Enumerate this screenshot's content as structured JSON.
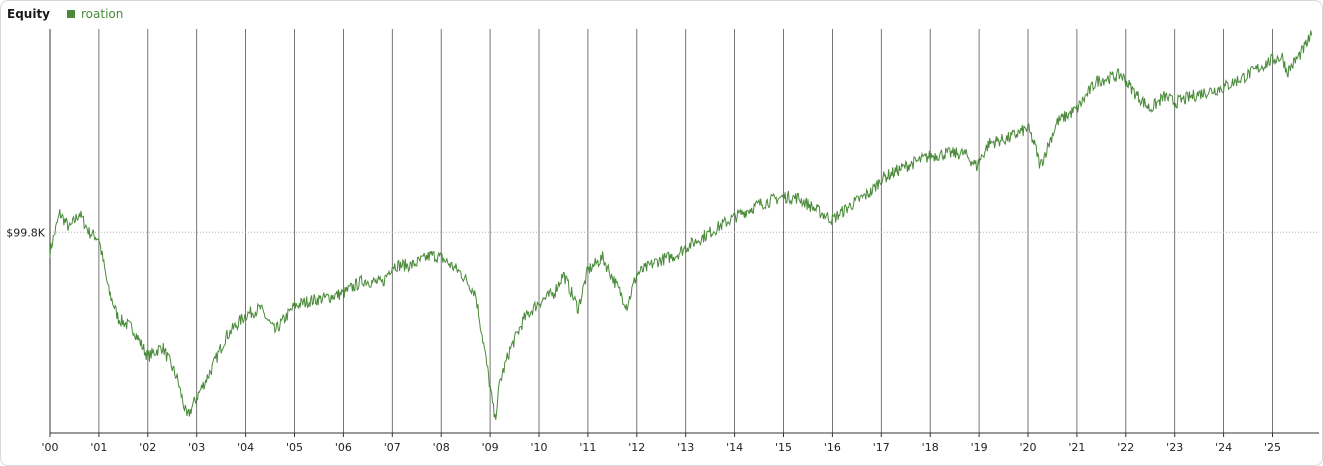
{
  "chart_data": {
    "type": "line",
    "title": "Equity",
    "legend_placement": "top-left",
    "series": [
      {
        "name": "roation",
        "color": "#4a8a3a",
        "x": [
          2000.0,
          2000.2,
          2000.4,
          2000.6,
          2000.8,
          2001.0,
          2001.2,
          2001.4,
          2001.7,
          2002.0,
          2002.3,
          2002.6,
          2002.8,
          2003.0,
          2003.3,
          2003.6,
          2004.0,
          2004.3,
          2004.6,
          2005.0,
          2005.3,
          2005.6,
          2006.0,
          2006.4,
          2006.8,
          2007.0,
          2007.4,
          2007.8,
          2008.0,
          2008.4,
          2008.7,
          2008.9,
          2009.1,
          2009.2,
          2009.4,
          2009.7,
          2010.0,
          2010.3,
          2010.5,
          2010.8,
          2011.0,
          2011.3,
          2011.6,
          2011.8,
          2012.0,
          2012.4,
          2012.8,
          2013.0,
          2013.5,
          2014.0,
          2014.5,
          2015.0,
          2015.3,
          2015.7,
          2016.0,
          2016.4,
          2016.8,
          2017.0,
          2017.5,
          2018.0,
          2018.3,
          2018.7,
          2018.95,
          2019.2,
          2019.6,
          2020.0,
          2020.15,
          2020.25,
          2020.6,
          2021.0,
          2021.4,
          2021.9,
          2022.2,
          2022.5,
          2022.8,
          2023.0,
          2023.5,
          2023.8,
          2024.0,
          2024.5,
          2025.0,
          2025.2,
          2025.3,
          2025.6,
          2025.8
        ],
        "y": [
          98.3,
          101.3,
          100.1,
          101.3,
          99.8,
          99.3,
          95.2,
          93.0,
          92.2,
          90.0,
          90.8,
          88.3,
          85.2,
          86.8,
          89.0,
          91.6,
          93.3,
          93.8,
          92.0,
          94.0,
          94.4,
          94.6,
          95.0,
          96.0,
          95.8,
          97.2,
          97.2,
          98.0,
          97.8,
          96.6,
          95.0,
          90.2,
          85.0,
          88.0,
          90.5,
          93.0,
          94.3,
          95.0,
          96.5,
          93.8,
          96.8,
          97.8,
          95.5,
          94.0,
          96.5,
          97.5,
          98.0,
          98.6,
          99.8,
          101.0,
          102.0,
          102.6,
          102.5,
          101.5,
          100.8,
          102.0,
          103.0,
          104.0,
          105.0,
          105.8,
          106.0,
          106.0,
          105.0,
          106.8,
          107.2,
          108.0,
          106.5,
          105.0,
          108.5,
          109.5,
          111.7,
          112.2,
          110.7,
          109.5,
          110.5,
          110.0,
          110.7,
          111.0,
          111.2,
          112.2,
          113.4,
          113.6,
          112.4,
          114.0,
          115.3
        ],
        "jitter_amplitude": 0.5
      }
    ],
    "x_ticks": [
      {
        "value": 2000,
        "label": "'00"
      },
      {
        "value": 2001,
        "label": "'01"
      },
      {
        "value": 2002,
        "label": "'02"
      },
      {
        "value": 2003,
        "label": "'03"
      },
      {
        "value": 2004,
        "label": "'04"
      },
      {
        "value": 2005,
        "label": "'05"
      },
      {
        "value": 2006,
        "label": "'06"
      },
      {
        "value": 2007,
        "label": "'07"
      },
      {
        "value": 2008,
        "label": "'08"
      },
      {
        "value": 2009,
        "label": "'09"
      },
      {
        "value": 2010,
        "label": "'10"
      },
      {
        "value": 2011,
        "label": "'11"
      },
      {
        "value": 2012,
        "label": "'12"
      },
      {
        "value": 2013,
        "label": "'13"
      },
      {
        "value": 2014,
        "label": "'14"
      },
      {
        "value": 2015,
        "label": "'15"
      },
      {
        "value": 2016,
        "label": "'16"
      },
      {
        "value": 2017,
        "label": "'17"
      },
      {
        "value": 2018,
        "label": "'18"
      },
      {
        "value": 2019,
        "label": "'19"
      },
      {
        "value": 2020,
        "label": "'20"
      },
      {
        "value": 2021,
        "label": "'21"
      },
      {
        "value": 2022,
        "label": "'22"
      },
      {
        "value": 2023,
        "label": "'23"
      },
      {
        "value": 2024,
        "label": "'24"
      },
      {
        "value": 2025,
        "label": "'25"
      }
    ],
    "y_label_value": 99.8,
    "y_label_text": "$99.8K",
    "xlim": [
      2000.0,
      2026.0
    ],
    "ylim": [
      84,
      115.8
    ],
    "vertical_gridlines": true,
    "horizontal_reference_line": "dotted"
  }
}
